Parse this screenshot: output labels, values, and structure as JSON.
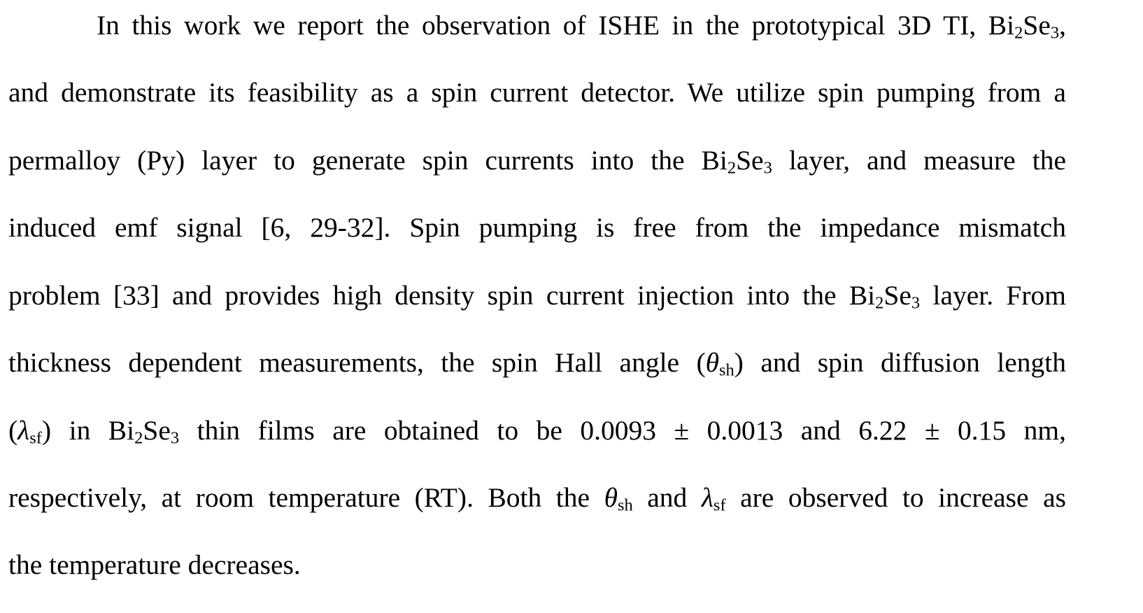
{
  "paragraph": {
    "lines": [
      {
        "parts": [
          {
            "t": "In this work we report the observation of ISHE in the prototypical 3D TI, Bi"
          },
          {
            "sub": "2"
          },
          {
            "t": "Se"
          },
          {
            "sub": "3"
          },
          {
            "t": ","
          }
        ]
      },
      {
        "parts": [
          {
            "t": "and demonstrate its feasibility as a spin current detector. We utilize spin pumping from a"
          }
        ]
      },
      {
        "parts": [
          {
            "t": "permalloy (Py) layer to generate spin currents into the Bi"
          },
          {
            "sub": "2"
          },
          {
            "t": "Se"
          },
          {
            "sub": "3"
          },
          {
            "t": " layer, and measure the"
          }
        ]
      },
      {
        "parts": [
          {
            "t": "induced emf signal [6, 29-32]. Spin pumping is free from the impedance mismatch"
          }
        ]
      },
      {
        "parts": [
          {
            "t": "problem [33] and provides high density spin current injection into the Bi"
          },
          {
            "sub": "2"
          },
          {
            "t": "Se"
          },
          {
            "sub": "3"
          },
          {
            "t": " layer. From"
          }
        ]
      },
      {
        "parts": [
          {
            "t": "thickness dependent measurements, the spin Hall angle ("
          },
          {
            "i": "θ"
          },
          {
            "sub": "sh"
          },
          {
            "t": ") and spin diffusion length"
          }
        ]
      },
      {
        "parts": [
          {
            "t": "("
          },
          {
            "i": "λ"
          },
          {
            "sub": "sf"
          },
          {
            "t": ") in Bi"
          },
          {
            "sub": "2"
          },
          {
            "t": "Se"
          },
          {
            "sub": "3"
          },
          {
            "t": " thin films are obtained to be 0.0093 ± 0.0013 and 6.22 ± 0.15 nm,"
          }
        ]
      },
      {
        "parts": [
          {
            "t": "respectively, at room temperature (RT). Both the "
          },
          {
            "i": "θ"
          },
          {
            "sub": "sh"
          },
          {
            "t": " and "
          },
          {
            "i": "λ"
          },
          {
            "sub": "sf"
          },
          {
            "t": " are observed to increase as"
          }
        ]
      },
      {
        "parts": [
          {
            "t": "the temperature decreases."
          }
        ]
      }
    ]
  }
}
